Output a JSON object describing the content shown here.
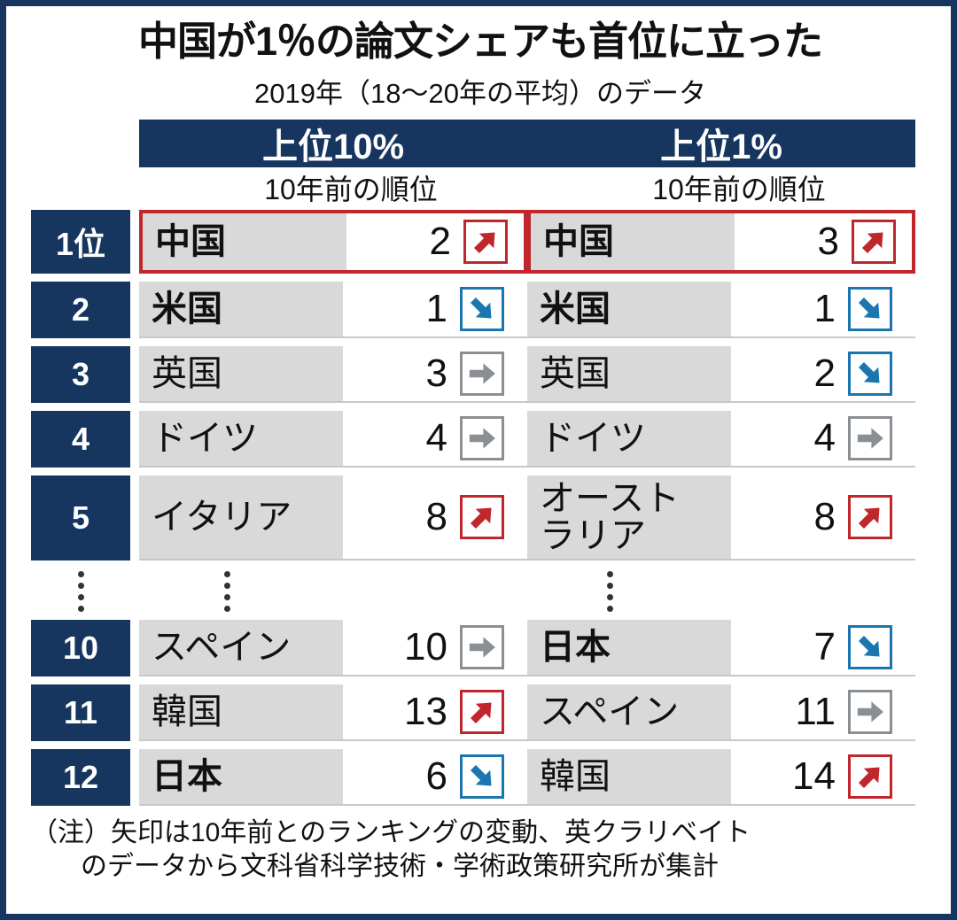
{
  "colors": {
    "navy": "#16355f",
    "red": "#c0272d",
    "blue": "#1b76b0",
    "gray": "#8a8f94",
    "cell_gray": "#d9d9d9"
  },
  "note": {
    "line1": "（注）矢印は10年前とのランキングの変動、英クラリベイト",
    "line2": "のデータから文科省科学技術・学術政策研究所が集計"
  },
  "chart_data": {
    "type": "table",
    "title": "中国が1％の論文シェアも首位に立った",
    "subtitle": "2019年（18～20年の平均）のデータ",
    "groups": [
      "上位10%",
      "上位1%"
    ],
    "value_label": "10年前の順位",
    "arrow_meaning": "矢印は10年前とのランキングの変動",
    "rows": [
      {
        "rank": "1位",
        "highlight": true,
        "cells": [
          {
            "country": "中国",
            "prev": "2",
            "arrow": "up",
            "bold": true
          },
          {
            "country": "中国",
            "prev": "3",
            "arrow": "up",
            "bold": true
          }
        ]
      },
      {
        "rank": "2",
        "cells": [
          {
            "country": "米国",
            "prev": "1",
            "arrow": "down",
            "bold": true
          },
          {
            "country": "米国",
            "prev": "1",
            "arrow": "down",
            "bold": true
          }
        ]
      },
      {
        "rank": "3",
        "cells": [
          {
            "country": "英国",
            "prev": "3",
            "arrow": "flat"
          },
          {
            "country": "英国",
            "prev": "2",
            "arrow": "down"
          }
        ]
      },
      {
        "rank": "4",
        "cells": [
          {
            "country": "ドイツ",
            "prev": "4",
            "arrow": "flat"
          },
          {
            "country": "ドイツ",
            "prev": "4",
            "arrow": "flat"
          }
        ]
      },
      {
        "rank": "5",
        "tall": true,
        "cells": [
          {
            "country": "イタリア",
            "prev": "8",
            "arrow": "up"
          },
          {
            "country": "オースト\nラリア",
            "prev": "8",
            "arrow": "up"
          }
        ]
      },
      {
        "ellipsis": true
      },
      {
        "rank": "10",
        "cells": [
          {
            "country": "スペイン",
            "prev": "10",
            "arrow": "flat"
          },
          {
            "country": "日本",
            "prev": "7",
            "arrow": "down",
            "bold": true
          }
        ]
      },
      {
        "rank": "11",
        "cells": [
          {
            "country": "韓国",
            "prev": "13",
            "arrow": "up"
          },
          {
            "country": "スペイン",
            "prev": "11",
            "arrow": "flat"
          }
        ]
      },
      {
        "rank": "12",
        "cells": [
          {
            "country": "日本",
            "prev": "6",
            "arrow": "down",
            "bold": true
          },
          {
            "country": "韓国",
            "prev": "14",
            "arrow": "up"
          }
        ]
      }
    ]
  }
}
